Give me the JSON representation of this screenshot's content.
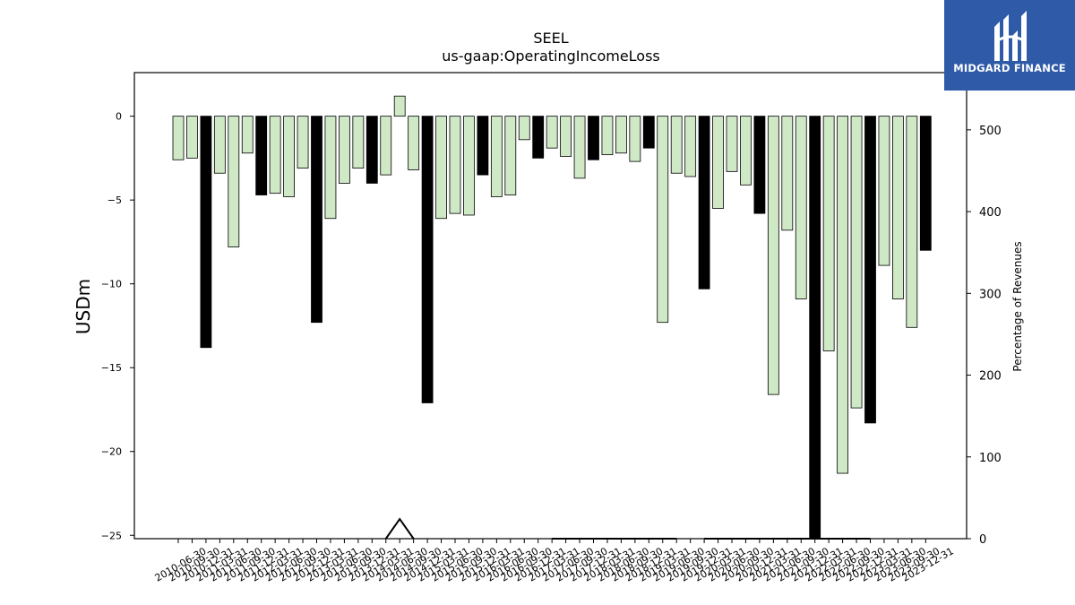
{
  "logo": {
    "text": "MIDGARD FINANCE",
    "color": "#2f5aa8"
  },
  "chart_data": {
    "type": "bar",
    "title": "SEEL",
    "subtitle": "us-gaap:OperatingIncomeLoss",
    "ylabel": "USDm",
    "y2label": "Percentage of Revenues",
    "ylim": [
      -25.2,
      2.6
    ],
    "y2lim": [
      0,
      570
    ],
    "yticks": [
      0,
      -5,
      -10,
      -15,
      -20,
      -25
    ],
    "y2ticks": [
      0,
      100,
      200,
      300,
      400,
      500
    ],
    "colors": {
      "quarter": "#cfe8c6",
      "annual": "#000000"
    },
    "categories": [
      "2010-06-30",
      "2010-09-30",
      "2010-12-31",
      "2011-03-31",
      "2011-06-30",
      "2011-09-30",
      "2011-12-31",
      "2012-03-31",
      "2012-06-30",
      "2012-09-30",
      "2012-12-31",
      "2013-03-31",
      "2013-06-30",
      "2013-09-30",
      "2013-12-31",
      "2014-03-31",
      "2014-06-30",
      "2014-09-30",
      "2014-12-31",
      "2015-03-31",
      "2015-06-30",
      "2015-09-30",
      "2015-12-31",
      "2016-03-31",
      "2016-06-30",
      "2016-09-30",
      "2016-12-31",
      "2017-03-31",
      "2017-06-30",
      "2017-09-30",
      "2017-12-31",
      "2018-03-31",
      "2018-06-30",
      "2018-09-30",
      "2018-12-31",
      "2019-03-31",
      "2019-06-30",
      "2019-09-30",
      "2019-12-31",
      "2020-03-31",
      "2020-06-30",
      "2020-09-30",
      "2020-12-31",
      "2021-03-31",
      "2021-06-30",
      "2021-09-30",
      "2021-12-31",
      "2022-03-31",
      "2022-06-30",
      "2022-09-30",
      "2022-12-31",
      "2023-03-31",
      "2023-06-30",
      "2023-09-30",
      "2023-12-31"
    ],
    "series": [
      {
        "values": [
          -2.6,
          -2.5,
          -13.8,
          -3.4,
          -7.8,
          -2.2,
          -4.7,
          -4.6,
          -4.8,
          -3.1,
          -12.3,
          -6.1,
          -4.0,
          -3.1,
          -4.0,
          -3.5,
          1.2,
          -3.2,
          -17.1,
          -6.1,
          -5.8,
          -5.9,
          -3.5,
          -4.8,
          -4.7,
          -1.4,
          -2.5,
          -1.9,
          -2.4,
          -3.7,
          -2.6,
          -2.3,
          -2.2,
          -2.7,
          -1.9,
          -12.3,
          -3.4,
          -3.6,
          -10.3,
          -5.5,
          -3.3,
          -4.1,
          -5.8,
          -16.6,
          -6.8,
          -10.9,
          -25.2,
          -14.0,
          -21.3,
          -17.4,
          -18.3,
          -8.9,
          -10.9,
          -12.6,
          -8.0
        ],
        "annual": [
          false,
          false,
          true,
          false,
          false,
          false,
          true,
          false,
          false,
          false,
          true,
          false,
          false,
          false,
          true,
          false,
          false,
          false,
          true,
          false,
          false,
          false,
          true,
          false,
          false,
          false,
          true,
          false,
          false,
          false,
          true,
          false,
          false,
          false,
          true,
          false,
          false,
          false,
          true,
          false,
          false,
          false,
          true,
          false,
          false,
          false,
          true,
          false,
          false,
          false,
          true,
          false,
          false,
          false,
          true
        ]
      },
      {
        "type": "line",
        "axis": "right",
        "values": [
          null,
          null,
          null,
          null,
          null,
          null,
          null,
          null,
          null,
          null,
          null,
          null,
          null,
          null,
          null,
          0,
          24,
          0,
          null,
          null,
          null,
          null,
          null,
          null,
          null,
          null,
          null,
          0,
          0,
          0,
          0,
          0,
          0,
          0,
          0,
          0,
          0,
          null,
          0,
          0,
          0,
          0,
          0,
          0,
          0,
          0,
          0,
          0,
          0,
          0,
          0,
          null,
          null,
          null,
          null
        ]
      }
    ]
  }
}
